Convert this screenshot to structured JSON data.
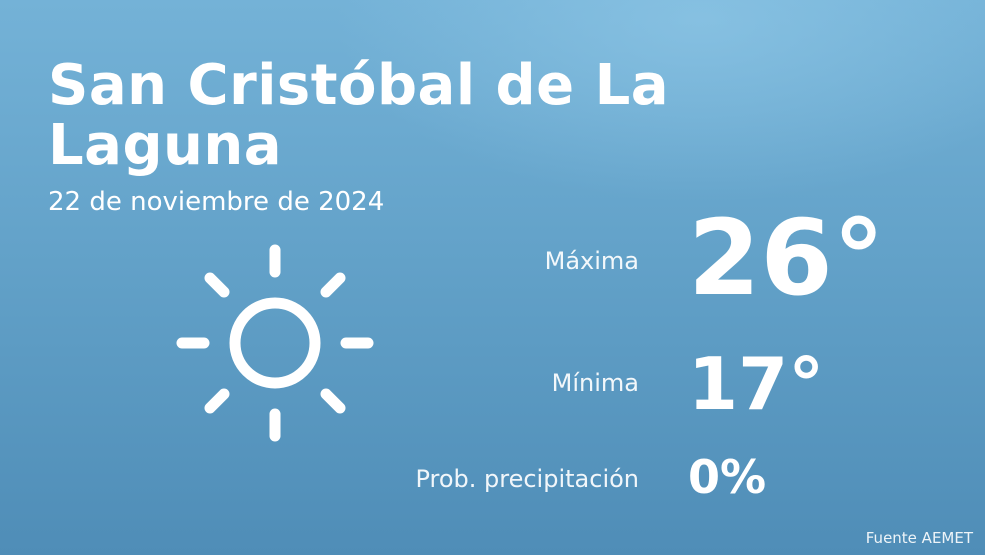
{
  "header": {
    "city": "San Cristóbal de La Laguna",
    "date": "22 de noviembre de 2024"
  },
  "weather": {
    "icon": "sun-icon",
    "max_label": "Máxima",
    "max_value": "26°",
    "min_label": "Mínima",
    "min_value": "17°",
    "precip_label": "Prob. precipitación",
    "precip_value": "0%"
  },
  "footer": {
    "source": "Fuente AEMET"
  },
  "colors": {
    "background_top": "#74b2d7",
    "background_bottom": "#4f8db7",
    "text": "#ffffff"
  }
}
